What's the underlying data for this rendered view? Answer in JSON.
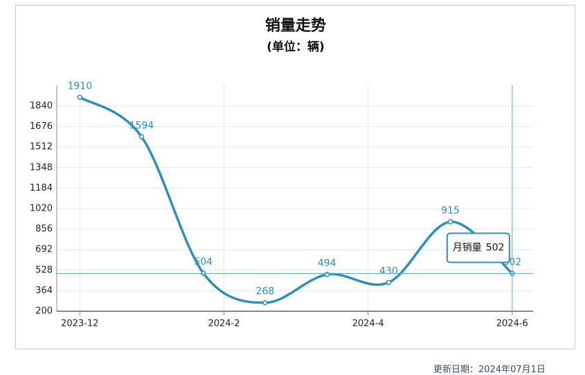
{
  "chart_data": {
    "type": "line",
    "title": "销量走势",
    "subtitle": "(单位：辆)",
    "x": [
      0,
      0.857,
      1.714,
      2.571,
      3.429,
      4.286,
      5.143,
      6
    ],
    "values": [
      1910,
      1594,
      504,
      268,
      494,
      430,
      915,
      502
    ],
    "color": "#2a8fc0",
    "smooth": true,
    "xlim": [
      -0.32,
      6.29
    ],
    "xticks": [
      {
        "value": 0,
        "label": "2023-12"
      },
      {
        "value": 2,
        "label": "2024-2"
      },
      {
        "value": 4,
        "label": "2024-4"
      },
      {
        "value": 6,
        "label": "2024-6"
      }
    ],
    "ylim": [
      200,
      2006
    ],
    "yticks": [
      200,
      364,
      528,
      692,
      856,
      1020,
      1184,
      1348,
      1512,
      1676,
      1840
    ],
    "grid": true,
    "tooltip_label": "月销量",
    "tooltip_index": 7
  },
  "footer": "更新日期：2024年07月1日"
}
